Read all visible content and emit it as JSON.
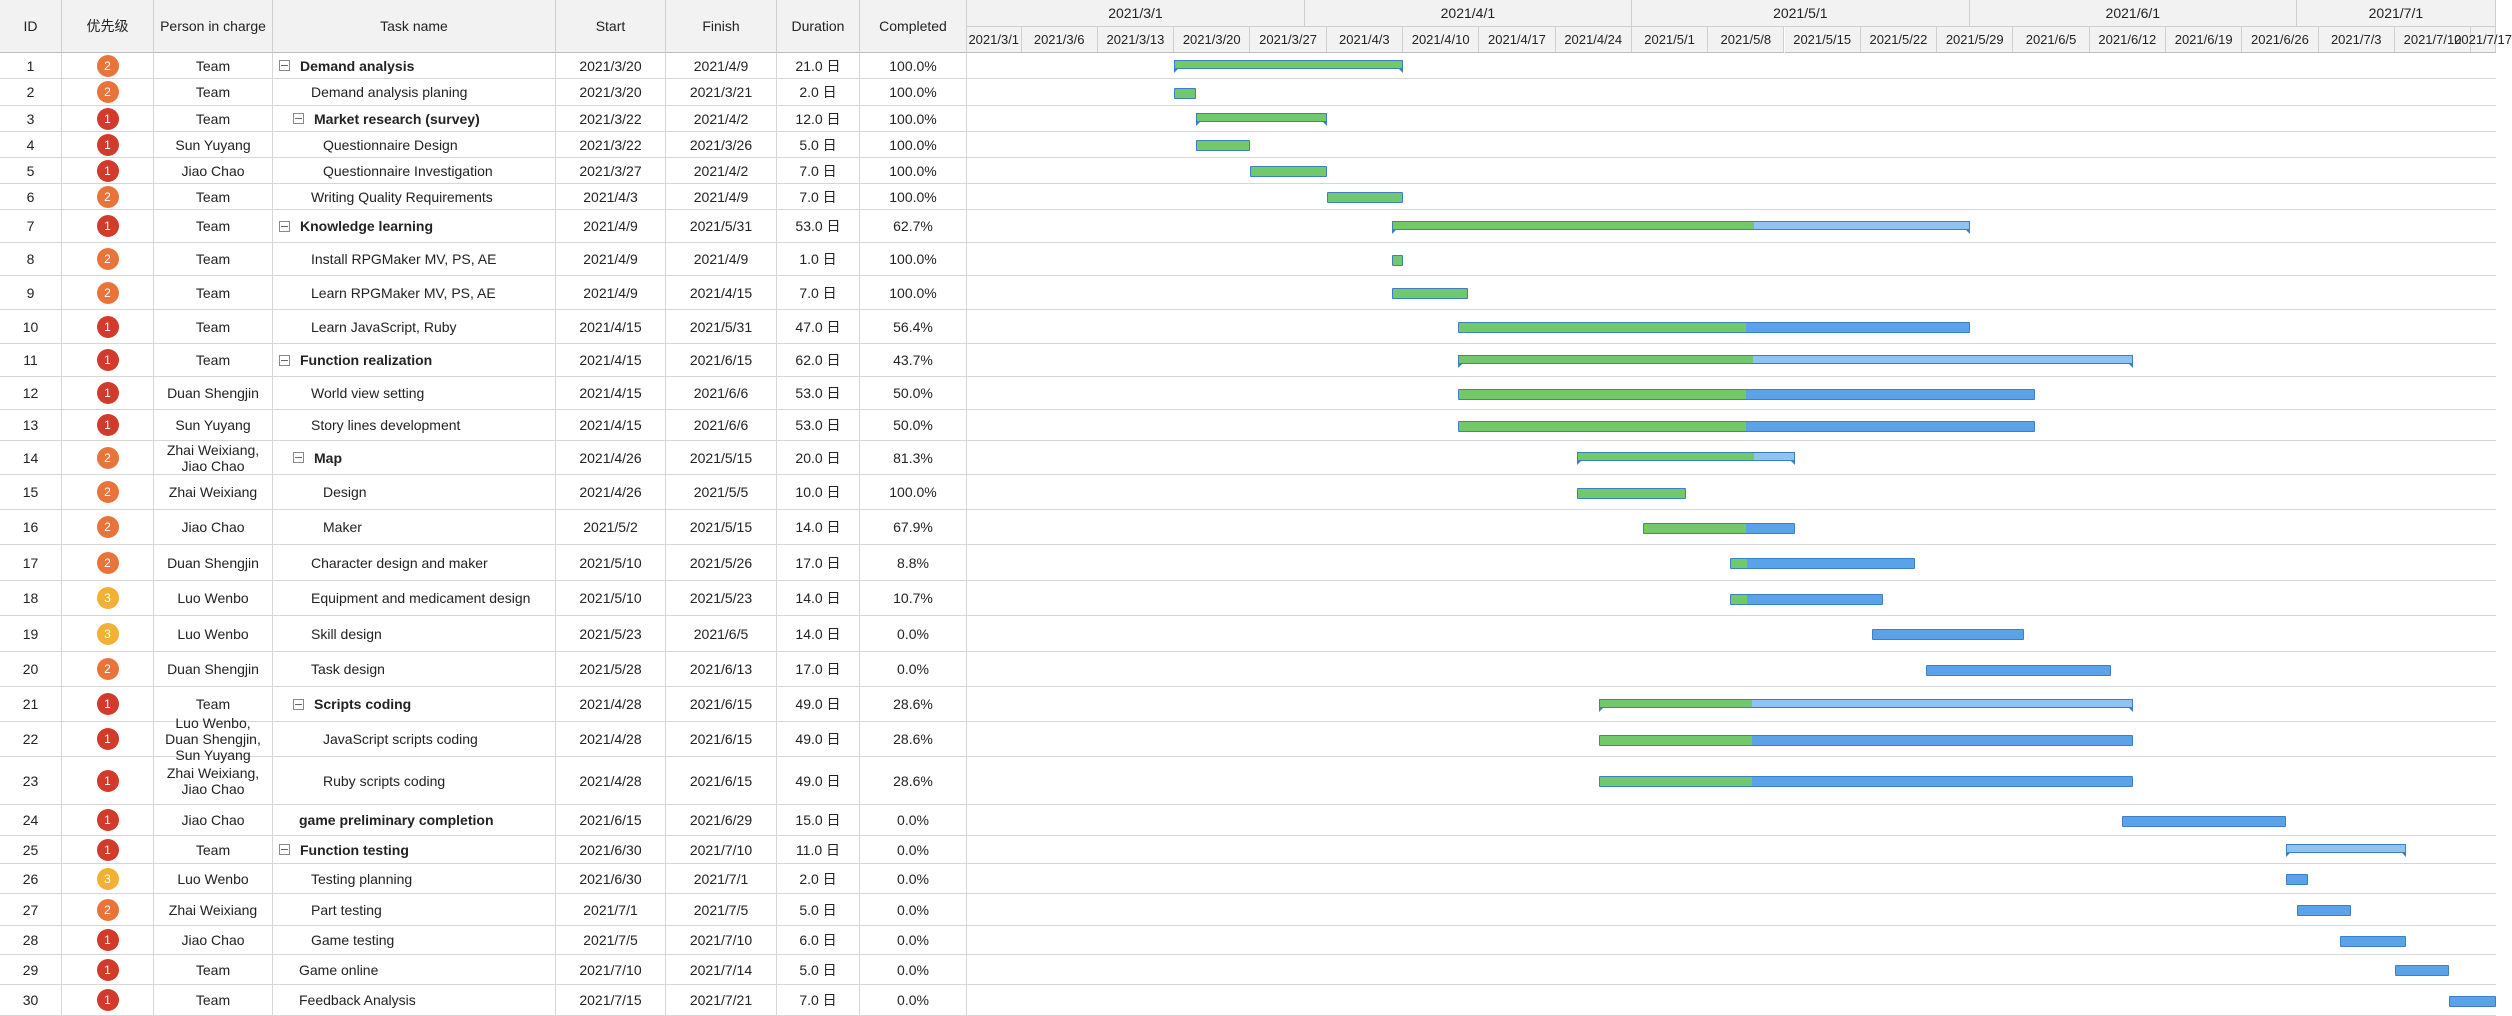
{
  "columns": {
    "id": "ID",
    "priority": "优先级",
    "person": "Person in\ncharge",
    "task": "Task name",
    "start": "Start",
    "finish": "Finish",
    "duration": "Duration",
    "completed": "Completed"
  },
  "timeline": {
    "months": [
      "2021/3/1",
      "2021/4/1",
      "2021/5/1",
      "2021/6/1",
      "2021/7/1"
    ],
    "weeks": [
      "2021/3/1",
      "2021/3/6",
      "2021/3/13",
      "2021/3/20",
      "2021/3/27",
      "2021/4/3",
      "2021/4/10",
      "2021/4/17",
      "2021/4/24",
      "2021/5/1",
      "2021/5/8",
      "2021/5/15",
      "2021/5/22",
      "2021/5/29",
      "2021/6/5",
      "2021/6/12",
      "2021/6/19",
      "2021/6/26",
      "2021/7/3",
      "2021/7/10",
      "2021/7/17"
    ]
  },
  "colors": {
    "priority_1": "#d23a2c",
    "priority_2": "#e8743a",
    "priority_3": "#f2b134",
    "progress_done": "#72c96a",
    "progress_remaining": "#5ba3e8",
    "bar_border": "#3d7fc2"
  },
  "icons": {
    "collapse": "collapse-minus-icon"
  },
  "rows": [
    {
      "id": "1",
      "priority": "2",
      "person": "Team",
      "task": "Demand analysis",
      "start": "2021/3/20",
      "finish": "2021/4/9",
      "duration": "21.0 日",
      "completed": "100.0%",
      "summary": true,
      "level": 0,
      "progress": 1.0
    },
    {
      "id": "2",
      "priority": "2",
      "person": "Team",
      "task": "Demand analysis planing",
      "start": "2021/3/20",
      "finish": "2021/3/21",
      "duration": "2.0 日",
      "completed": "100.0%",
      "summary": false,
      "level": 1,
      "progress": 1.0
    },
    {
      "id": "3",
      "priority": "1",
      "person": "Team",
      "task": "Market research (survey)",
      "start": "2021/3/22",
      "finish": "2021/4/2",
      "duration": "12.0 日",
      "completed": "100.0%",
      "summary": true,
      "level": 1,
      "progress": 1.0
    },
    {
      "id": "4",
      "priority": "1",
      "person": "Sun Yuyang",
      "task": "Questionnaire Design",
      "start": "2021/3/22",
      "finish": "2021/3/26",
      "duration": "5.0 日",
      "completed": "100.0%",
      "summary": false,
      "level": 2,
      "progress": 1.0
    },
    {
      "id": "5",
      "priority": "1",
      "person": "Jiao Chao",
      "task": "Questionnaire Investigation",
      "start": "2021/3/27",
      "finish": "2021/4/2",
      "duration": "7.0 日",
      "completed": "100.0%",
      "summary": false,
      "level": 2,
      "progress": 1.0
    },
    {
      "id": "6",
      "priority": "2",
      "person": "Team",
      "task": "Writing Quality Requirements",
      "start": "2021/4/3",
      "finish": "2021/4/9",
      "duration": "7.0 日",
      "completed": "100.0%",
      "summary": false,
      "level": 1,
      "progress": 1.0
    },
    {
      "id": "7",
      "priority": "1",
      "person": "Team",
      "task": "Knowledge learning",
      "start": "2021/4/9",
      "finish": "2021/5/31",
      "duration": "53.0 日",
      "completed": "62.7%",
      "summary": true,
      "level": 0,
      "progress": 0.627
    },
    {
      "id": "8",
      "priority": "2",
      "person": "Team",
      "task": "Install RPGMaker MV, PS, AE",
      "start": "2021/4/9",
      "finish": "2021/4/9",
      "duration": "1.0 日",
      "completed": "100.0%",
      "summary": false,
      "level": 1,
      "progress": 1.0
    },
    {
      "id": "9",
      "priority": "2",
      "person": "Team",
      "task": "Learn RPGMaker MV, PS, AE",
      "start": "2021/4/9",
      "finish": "2021/4/15",
      "duration": "7.0 日",
      "completed": "100.0%",
      "summary": false,
      "level": 1,
      "progress": 1.0
    },
    {
      "id": "10",
      "priority": "1",
      "person": "Team",
      "task": "Learn JavaScript, Ruby",
      "start": "2021/4/15",
      "finish": "2021/5/31",
      "duration": "47.0 日",
      "completed": "56.4%",
      "summary": false,
      "level": 1,
      "progress": 0.564
    },
    {
      "id": "11",
      "priority": "1",
      "person": "Team",
      "task": "Function realization",
      "start": "2021/4/15",
      "finish": "2021/6/15",
      "duration": "62.0 日",
      "completed": "43.7%",
      "summary": true,
      "level": 0,
      "progress": 0.437
    },
    {
      "id": "12",
      "priority": "1",
      "person": "Duan Shengjin",
      "task": "World view setting",
      "start": "2021/4/15",
      "finish": "2021/6/6",
      "duration": "53.0 日",
      "completed": "50.0%",
      "summary": false,
      "level": 1,
      "progress": 0.5
    },
    {
      "id": "13",
      "priority": "1",
      "person": "Sun Yuyang",
      "task": "Story lines development",
      "start": "2021/4/15",
      "finish": "2021/6/6",
      "duration": "53.0 日",
      "completed": "50.0%",
      "summary": false,
      "level": 1,
      "progress": 0.5
    },
    {
      "id": "14",
      "priority": "2",
      "person": "Zhai Weixiang,\nJiao Chao",
      "task": "Map",
      "start": "2021/4/26",
      "finish": "2021/5/15",
      "duration": "20.0 日",
      "completed": "81.3%",
      "summary": true,
      "level": 1,
      "progress": 0.813
    },
    {
      "id": "15",
      "priority": "2",
      "person": "Zhai Weixiang",
      "task": "Design",
      "start": "2021/4/26",
      "finish": "2021/5/5",
      "duration": "10.0 日",
      "completed": "100.0%",
      "summary": false,
      "level": 2,
      "progress": 1.0
    },
    {
      "id": "16",
      "priority": "2",
      "person": "Jiao Chao",
      "task": "Maker",
      "start": "2021/5/2",
      "finish": "2021/5/15",
      "duration": "14.0 日",
      "completed": "67.9%",
      "summary": false,
      "level": 2,
      "progress": 0.679
    },
    {
      "id": "17",
      "priority": "2",
      "person": "Duan Shengjin",
      "task": "Character design and maker",
      "start": "2021/5/10",
      "finish": "2021/5/26",
      "duration": "17.0 日",
      "completed": "8.8%",
      "summary": false,
      "level": 1,
      "progress": 0.088
    },
    {
      "id": "18",
      "priority": "3",
      "person": "Luo Wenbo",
      "task": "Equipment and medicament design",
      "start": "2021/5/10",
      "finish": "2021/5/23",
      "duration": "14.0 日",
      "completed": "10.7%",
      "summary": false,
      "level": 1,
      "progress": 0.107
    },
    {
      "id": "19",
      "priority": "3",
      "person": "Luo Wenbo",
      "task": "Skill design",
      "start": "2021/5/23",
      "finish": "2021/6/5",
      "duration": "14.0 日",
      "completed": "0.0%",
      "summary": false,
      "level": 1,
      "progress": 0.0
    },
    {
      "id": "20",
      "priority": "2",
      "person": "Duan Shengjin",
      "task": "Task design",
      "start": "2021/5/28",
      "finish": "2021/6/13",
      "duration": "17.0 日",
      "completed": "0.0%",
      "summary": false,
      "level": 1,
      "progress": 0.0
    },
    {
      "id": "21",
      "priority": "1",
      "person": "Team",
      "task": "Scripts coding",
      "start": "2021/4/28",
      "finish": "2021/6/15",
      "duration": "49.0 日",
      "completed": "28.6%",
      "summary": true,
      "level": 1,
      "progress": 0.286
    },
    {
      "id": "22",
      "priority": "1",
      "person": "Luo Wenbo,\nDuan Shengjin,\nSun Yuyang",
      "task": "JavaScript scripts coding",
      "start": "2021/4/28",
      "finish": "2021/6/15",
      "duration": "49.0 日",
      "completed": "28.6%",
      "summary": false,
      "level": 2,
      "progress": 0.286
    },
    {
      "id": "23",
      "priority": "1",
      "person": "Zhai Weixiang,\nJiao Chao",
      "task": "Ruby scripts coding",
      "start": "2021/4/28",
      "finish": "2021/6/15",
      "duration": "49.0 日",
      "completed": "28.6%",
      "summary": false,
      "level": 2,
      "progress": 0.286
    },
    {
      "id": "24",
      "priority": "1",
      "person": "Jiao Chao",
      "task": "game preliminary completion",
      "start": "2021/6/15",
      "finish": "2021/6/29",
      "duration": "15.0 日",
      "completed": "0.0%",
      "summary": false,
      "level": 0,
      "bold": true,
      "progress": 0.0
    },
    {
      "id": "25",
      "priority": "1",
      "person": "Team",
      "task": "Function testing",
      "start": "2021/6/30",
      "finish": "2021/7/10",
      "duration": "11.0 日",
      "completed": "0.0%",
      "summary": true,
      "level": 0,
      "progress": 0.0
    },
    {
      "id": "26",
      "priority": "3",
      "person": "Luo Wenbo",
      "task": "Testing planning",
      "start": "2021/6/30",
      "finish": "2021/7/1",
      "duration": "2.0 日",
      "completed": "0.0%",
      "summary": false,
      "level": 1,
      "progress": 0.0
    },
    {
      "id": "27",
      "priority": "2",
      "person": "Zhai Weixiang",
      "task": "Part testing",
      "start": "2021/7/1",
      "finish": "2021/7/5",
      "duration": "5.0 日",
      "completed": "0.0%",
      "summary": false,
      "level": 1,
      "progress": 0.0
    },
    {
      "id": "28",
      "priority": "1",
      "person": "Jiao Chao",
      "task": "Game testing",
      "start": "2021/7/5",
      "finish": "2021/7/10",
      "duration": "6.0 日",
      "completed": "0.0%",
      "summary": false,
      "level": 1,
      "progress": 0.0
    },
    {
      "id": "29",
      "priority": "1",
      "person": "Team",
      "task": "Game online",
      "start": "2021/7/10",
      "finish": "2021/7/14",
      "duration": "5.0 日",
      "completed": "0.0%",
      "summary": false,
      "level": 0,
      "progress": 0.0
    },
    {
      "id": "30",
      "priority": "1",
      "person": "Team",
      "task": "Feedback Analysis",
      "start": "2021/7/15",
      "finish": "2021/7/21",
      "duration": "7.0 日",
      "completed": "0.0%",
      "summary": false,
      "level": 0,
      "progress": 0.0
    }
  ]
}
